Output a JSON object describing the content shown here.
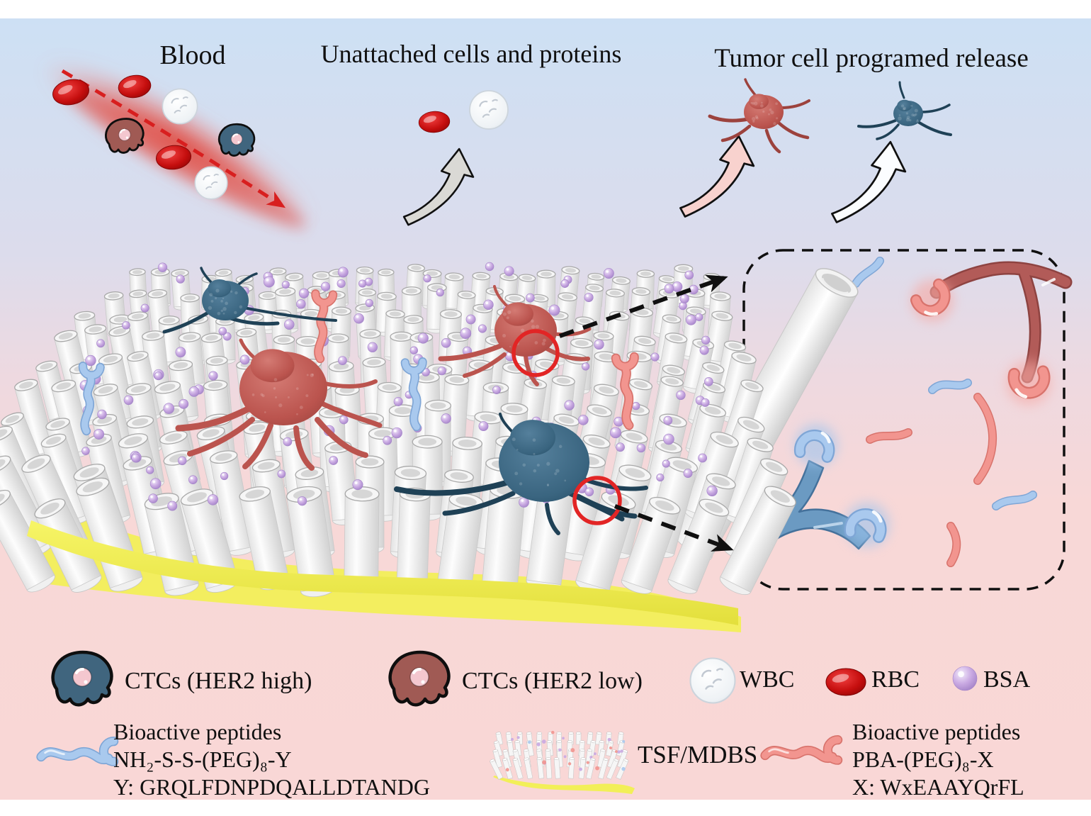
{
  "figure": {
    "blood_label": "Blood",
    "unattached_label": "Unattached cells and proteins",
    "release_label": "Tumor cell programed release"
  },
  "legend": {
    "ctc_high": "CTCs (HER2 high)",
    "ctc_low": "CTCs (HER2 low)",
    "wbc": "WBC",
    "rbc": "RBC",
    "bsa": "BSA",
    "tsf": "TSF/MDBS",
    "peptide_left": {
      "title": "Bioactive peptides",
      "formula": "NH₂-S-S-(PEG)₈-Y",
      "sequence": "Y: GRQLFDNPDQALLDTANDG"
    },
    "peptide_right": {
      "title": "Bioactive peptides",
      "formula": "PBA-(PEG)₈-X",
      "sequence": "X: WxEAAYQrFL"
    }
  },
  "icons": {
    "ctc_high_icon": "dark-blue-tumor-cell",
    "ctc_low_icon": "dark-red-tumor-cell",
    "wbc_icon": "white-blood-cell-sphere",
    "rbc_icon": "red-blood-cell-disc",
    "bsa_icon": "purple-protein-sphere",
    "peptide_blue_icon": "blue-squiggle-with-hook",
    "peptide_pink_icon": "pink-squiggle-with-hook",
    "tsf_icon": "nanopillar-film-miniature",
    "zoom_arrow_icon": "black-dashed-arrow",
    "release_arrow_icon": "curved-outline-arrow"
  },
  "colors": {
    "bg_top": "#cde0f4",
    "bg_mid": "#e9dbe4",
    "bg_bottom": "#f9d7d6",
    "membrane": "#f2ef58",
    "membrane_deep": "#e0dc3a",
    "pillar_light": "#fdfdfd",
    "pillar_dark": "#d7d7d7",
    "bsa": "#c9a9e2",
    "bsa_dark": "#a384c8",
    "peptide_blue": "#a9c9ee",
    "peptide_blue_dark": "#7fa6d6",
    "peptide_pink": "#f2958f",
    "peptide_pink_dark": "#d8736c",
    "tumor_red": "#bb544e",
    "tumor_red_deep": "#9c423d",
    "tumor_blue": "#3a6580",
    "tumor_blue_deep": "#1f4156",
    "ctc_high_body": "#40657e",
    "ctc_low_body": "#a05a54",
    "ctc_hole": "#f4c7cf",
    "rbc": "#c51010",
    "wbc": "#f3f6f8",
    "arrow_gray": "#dad9d5",
    "arrow_pink": "#f8d2ce",
    "arrow_white": "#fbfdff",
    "highlight_red": "#e22525",
    "blood_streak": "#e0463c",
    "inset_blue": "#6b9ac2",
    "inset_blue_deep": "#44719b",
    "inset_red": "#b25b58",
    "inset_red_deep": "#8e4341"
  }
}
